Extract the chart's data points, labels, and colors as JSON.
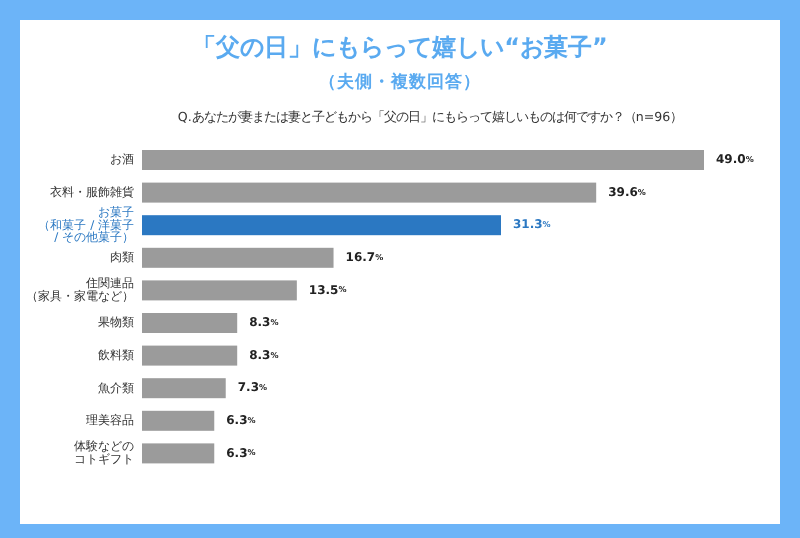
{
  "chart_data": {
    "type": "bar",
    "orientation": "horizontal",
    "title": "「父の日」にもらって嬉しい“お菓子”",
    "subtitle": "（夫側・複数回答）",
    "annotations": [
      "Q.あなたが妻または妻と子どもから「父の日」にもらって嬉しいものは何ですか？（n=96）"
    ],
    "categories": [
      "お酒",
      "衣料・服飾雑貨",
      "お菓子（和菓子 / 洋菓子 / その他菓子）",
      "肉類",
      "住関連品（家具・家電など）",
      "果物類",
      "飲料類",
      "魚介類",
      "理美容品",
      "体験などのコトギフト"
    ],
    "values": [
      49.0,
      39.6,
      31.3,
      16.7,
      13.5,
      8.3,
      8.3,
      7.3,
      6.3,
      6.3
    ],
    "colors": [
      "#9b9b9b",
      "#9b9b9b",
      "#2b78c2",
      "#9b9b9b",
      "#9b9b9b",
      "#9b9b9b",
      "#9b9b9b",
      "#9b9b9b",
      "#9b9b9b",
      "#9b9b9b"
    ],
    "value_labels": [
      "49.0%",
      "39.6%",
      "31.3%",
      "16.7%",
      "13.5%",
      "8.3%",
      "8.3%",
      "7.3%",
      "6.3%",
      "6.3%"
    ]
  }
}
